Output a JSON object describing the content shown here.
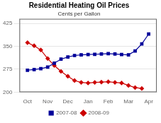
{
  "chart_data": {
    "type": "line",
    "title": "Residential Heating Oil Prices",
    "subtitle": "Cents per Gallon",
    "xlim": [
      -0.4,
      6.4
    ],
    "xticks": [
      {
        "value": 0,
        "label": "Oct"
      },
      {
        "value": 1,
        "label": "Nov"
      },
      {
        "value": 2,
        "label": "Dec"
      },
      {
        "value": 3,
        "label": "Jan"
      },
      {
        "value": 4,
        "label": "Feb"
      },
      {
        "value": 5,
        "label": "Mar"
      },
      {
        "value": 6,
        "label": "Apr"
      }
    ],
    "ylim": [
      200,
      440
    ],
    "yticks": [
      200,
      275,
      350,
      425
    ],
    "grid": true,
    "legend": "bottom",
    "series": [
      {
        "name": "2007-08",
        "color": "#000099",
        "marker": "square",
        "x": [
          0,
          0.33,
          0.66,
          1.0,
          1.33,
          1.66,
          2.0,
          2.33,
          2.66,
          3.0,
          3.33,
          3.66,
          4.0,
          4.33,
          4.66,
          5.0,
          5.33,
          5.66,
          6.0
        ],
        "values": [
          272,
          274,
          277,
          282,
          295,
          308,
          315,
          320,
          322,
          323,
          324,
          325,
          326,
          325,
          323,
          322,
          335,
          358,
          390
        ]
      },
      {
        "name": "2008-09",
        "color": "#CC0000",
        "marker": "diamond",
        "x": [
          0,
          0.33,
          0.66,
          1.0,
          1.33,
          1.66,
          2.0,
          2.33,
          2.66,
          3.0,
          3.33,
          3.66,
          4.0,
          4.33,
          4.66,
          5.0,
          5.33,
          5.66
        ],
        "values": [
          362,
          352,
          338,
          310,
          287,
          268,
          252,
          238,
          232,
          230,
          232,
          233,
          234,
          232,
          230,
          222,
          215,
          212
        ]
      }
    ]
  }
}
